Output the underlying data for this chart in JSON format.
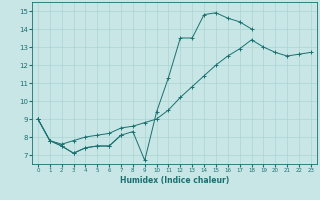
{
  "xlabel": "Humidex (Indice chaleur)",
  "xlim": [
    -0.5,
    23.5
  ],
  "ylim": [
    6.5,
    15.5
  ],
  "xticks": [
    0,
    1,
    2,
    3,
    4,
    5,
    6,
    7,
    8,
    9,
    10,
    11,
    12,
    13,
    14,
    15,
    16,
    17,
    18,
    19,
    20,
    21,
    22,
    23
  ],
  "yticks": [
    7,
    8,
    9,
    10,
    11,
    12,
    13,
    14,
    15
  ],
  "bg_color": "#c8e6e6",
  "line_color": "#1a7070",
  "grid_color": "#aad4d4",
  "series": [
    {
      "x": [
        0,
        1,
        2,
        3,
        4,
        5,
        6,
        7
      ],
      "y": [
        9.0,
        7.8,
        7.5,
        7.1,
        7.4,
        7.5,
        7.5,
        8.1
      ]
    },
    {
      "x": [
        0,
        1,
        2,
        3,
        4,
        5,
        6,
        7,
        8,
        9,
        10,
        11,
        12,
        13,
        14,
        15,
        16,
        17,
        18
      ],
      "y": [
        9.0,
        7.8,
        7.5,
        7.1,
        7.4,
        7.5,
        7.5,
        8.1,
        8.3,
        6.7,
        9.4,
        11.3,
        13.5,
        13.5,
        14.8,
        14.9,
        14.6,
        14.4,
        14.0
      ]
    },
    {
      "x": [
        0,
        1,
        2,
        3,
        4,
        5,
        6,
        7,
        8,
        9,
        10,
        11,
        12,
        13,
        14,
        15,
        16,
        17,
        18,
        19,
        20,
        21,
        22,
        23
      ],
      "y": [
        9.0,
        7.8,
        7.6,
        7.8,
        8.0,
        8.1,
        8.2,
        8.5,
        8.6,
        8.8,
        9.0,
        9.5,
        10.2,
        10.8,
        11.4,
        12.0,
        12.5,
        12.9,
        13.4,
        13.0,
        12.7,
        12.5,
        12.6,
        12.7
      ]
    }
  ]
}
